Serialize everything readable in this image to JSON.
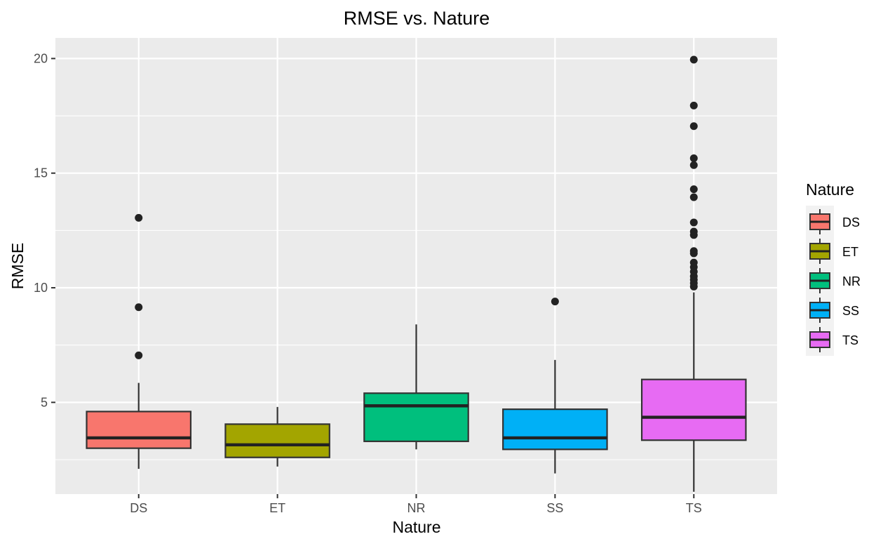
{
  "chart_data": {
    "type": "box",
    "title": "RMSE vs. Nature",
    "xlabel": "Nature",
    "ylabel": "RMSE",
    "ylim": [
      1.0,
      20.9
    ],
    "yticks": [
      5,
      10,
      15,
      20
    ],
    "grid": true,
    "legend": {
      "title": "Nature",
      "position": "right",
      "entries": [
        "DS",
        "ET",
        "NR",
        "SS",
        "TS"
      ]
    },
    "categories": [
      "DS",
      "ET",
      "NR",
      "SS",
      "TS"
    ],
    "colors": [
      "#F8766D",
      "#A3A500",
      "#00BF7D",
      "#00B0F6",
      "#E76BF3"
    ],
    "boxes": [
      {
        "category": "DS",
        "lower_whisker": 2.1,
        "q1": 3.0,
        "median": 3.45,
        "q3": 4.6,
        "upper_whisker": 5.85,
        "outliers": [
          7.05,
          9.15,
          13.05
        ]
      },
      {
        "category": "ET",
        "lower_whisker": 2.2,
        "q1": 2.6,
        "median": 3.15,
        "q3": 4.05,
        "upper_whisker": 4.8,
        "outliers": []
      },
      {
        "category": "NR",
        "lower_whisker": 2.95,
        "q1": 3.3,
        "median": 4.85,
        "q3": 5.4,
        "upper_whisker": 8.4,
        "outliers": []
      },
      {
        "category": "SS",
        "lower_whisker": 1.9,
        "q1": 2.95,
        "median": 3.45,
        "q3": 4.7,
        "upper_whisker": 6.85,
        "outliers": [
          9.4
        ]
      },
      {
        "category": "TS",
        "lower_whisker": 1.1,
        "q1": 3.35,
        "median": 4.35,
        "q3": 6.0,
        "upper_whisker": 9.8,
        "outliers": [
          10.05,
          10.2,
          10.35,
          10.5,
          10.7,
          10.9,
          11.1,
          11.5,
          11.6,
          12.3,
          12.45,
          12.85,
          13.95,
          14.3,
          15.35,
          15.65,
          17.05,
          17.95,
          19.95
        ]
      }
    ]
  }
}
